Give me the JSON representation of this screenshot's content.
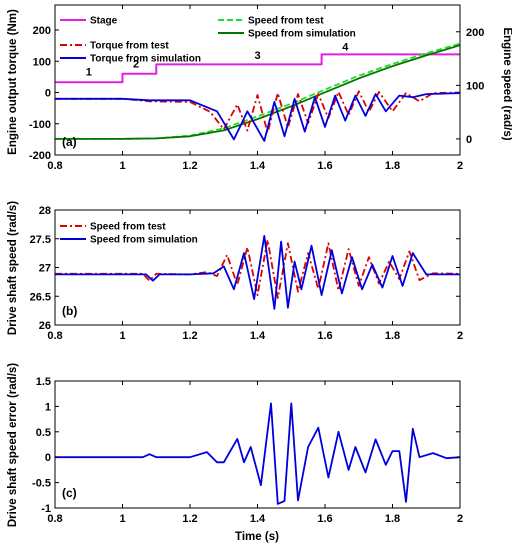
{
  "figure": {
    "x_axis_label": "Time (s)"
  },
  "chart_data": [
    {
      "type": "line",
      "panel_label": "(a)",
      "ylabel": "Engine output torque (Nm)",
      "ylabel_right": "Engine speed (rad/s)",
      "xlim": [
        0.8,
        2.0
      ],
      "ylim": [
        -200,
        280
      ],
      "ylim_right": [
        -30,
        250
      ],
      "x_ticks": [
        "0.8",
        "1",
        "1.2",
        "1.4",
        "1.6",
        "1.8",
        "2"
      ],
      "x_tick_values": [
        0.8,
        1.0,
        1.2,
        1.4,
        1.6,
        1.8,
        2.0
      ],
      "y_ticks": [
        "-200",
        "-100",
        "0",
        "100",
        "200"
      ],
      "y_tick_values": [
        -200,
        -100,
        0,
        100,
        200
      ],
      "y_ticks_right": [
        "0",
        "100",
        "200"
      ],
      "y_tick_values_right": [
        0,
        100,
        200
      ],
      "legend": [
        {
          "name": "Stage",
          "color": "#e020e0",
          "dash": "solid"
        },
        {
          "name": "Torque from test",
          "color": "#dd0000",
          "dash": "dashdot"
        },
        {
          "name": "Torque from simulation",
          "color": "#0000dd",
          "dash": "solid"
        },
        {
          "name": "Speed from test",
          "color": "#22dd22",
          "dash": "dashed"
        },
        {
          "name": "Speed from simulation",
          "color": "#007700",
          "dash": "solid"
        }
      ],
      "stage_labels": [
        {
          "text": "1",
          "x": 0.9,
          "y": 55
        },
        {
          "text": "2",
          "x": 1.04,
          "y": 80
        },
        {
          "text": "3",
          "x": 1.4,
          "y": 107
        },
        {
          "text": "4",
          "x": 1.66,
          "y": 135
        }
      ],
      "series": [
        {
          "name": "Stage",
          "axis": "left",
          "color": "#e020e0",
          "dash": "solid",
          "x": [
            0.8,
            1.0,
            1.0,
            1.1,
            1.1,
            1.59,
            1.59,
            2.0
          ],
          "y": [
            33,
            33,
            60,
            60,
            90,
            90,
            122,
            122
          ]
        },
        {
          "name": "Speed from test",
          "axis": "right",
          "color": "#22dd22",
          "dash": "dashed",
          "x": [
            0.8,
            1.0,
            1.1,
            1.2,
            1.3,
            1.4,
            1.5,
            1.6,
            1.7,
            1.8,
            1.9,
            2.0
          ],
          "y": [
            0,
            0,
            1,
            6,
            20,
            42,
            66,
            92,
            118,
            140,
            160,
            178
          ]
        },
        {
          "name": "Speed from simulation",
          "axis": "right",
          "color": "#007700",
          "dash": "solid",
          "x": [
            0.8,
            1.0,
            1.1,
            1.2,
            1.3,
            1.4,
            1.5,
            1.6,
            1.7,
            1.8,
            1.9,
            2.0
          ],
          "y": [
            0,
            0,
            1,
            5,
            16,
            37,
            61,
            87,
            113,
            136,
            156,
            175
          ]
        },
        {
          "name": "Torque from test",
          "axis": "left",
          "color": "#dd0000",
          "dash": "dashdot",
          "x": [
            0.8,
            1.0,
            1.08,
            1.2,
            1.26,
            1.3,
            1.34,
            1.37,
            1.4,
            1.43,
            1.46,
            1.49,
            1.52,
            1.55,
            1.58,
            1.61,
            1.64,
            1.67,
            1.7,
            1.73,
            1.76,
            1.8,
            1.84,
            1.88,
            1.92,
            2.0
          ],
          "y": [
            -20,
            -20,
            -28,
            -30,
            -62,
            -118,
            -38,
            -122,
            -8,
            -128,
            -2,
            -112,
            -5,
            -98,
            -5,
            -82,
            2,
            -72,
            4,
            -62,
            2,
            -60,
            -2,
            -28,
            -2,
            0
          ]
        },
        {
          "name": "Torque from simulation",
          "axis": "left",
          "color": "#0000dd",
          "dash": "solid",
          "x": [
            0.8,
            1.0,
            1.08,
            1.2,
            1.28,
            1.33,
            1.37,
            1.42,
            1.45,
            1.48,
            1.51,
            1.54,
            1.57,
            1.6,
            1.63,
            1.66,
            1.69,
            1.72,
            1.75,
            1.78,
            1.82,
            1.86,
            1.9,
            2.0
          ],
          "y": [
            -20,
            -20,
            -25,
            -25,
            -60,
            -150,
            -60,
            -155,
            -30,
            -140,
            -20,
            -125,
            -15,
            -110,
            -10,
            -90,
            -10,
            -75,
            -5,
            -60,
            -10,
            -15,
            -5,
            -2
          ]
        }
      ]
    },
    {
      "type": "line",
      "panel_label": "(b)",
      "ylabel": "Drive shaft speed (rad/s)",
      "xlim": [
        0.8,
        2.0
      ],
      "ylim": [
        26.0,
        28.0
      ],
      "x_ticks": [
        "0.8",
        "1",
        "1.2",
        "1.4",
        "1.6",
        "1.8",
        "2"
      ],
      "x_tick_values": [
        0.8,
        1.0,
        1.2,
        1.4,
        1.6,
        1.8,
        2.0
      ],
      "y_ticks": [
        "26",
        "26.5",
        "27",
        "27.5",
        "28"
      ],
      "y_tick_values": [
        26.0,
        26.5,
        27.0,
        27.5,
        28.0
      ],
      "legend": [
        {
          "name": "Speed from test",
          "color": "#dd0000",
          "dash": "dashdot"
        },
        {
          "name": "Speed from simulation",
          "color": "#0000dd",
          "dash": "solid"
        }
      ],
      "series": [
        {
          "name": "Speed from test",
          "color": "#dd0000",
          "dash": "dashdot",
          "x": [
            0.8,
            1.06,
            1.08,
            1.1,
            1.2,
            1.25,
            1.28,
            1.31,
            1.34,
            1.37,
            1.4,
            1.43,
            1.46,
            1.49,
            1.52,
            1.55,
            1.58,
            1.61,
            1.64,
            1.67,
            1.7,
            1.73,
            1.76,
            1.79,
            1.82,
            1.85,
            1.88,
            1.92,
            2.0
          ],
          "y": [
            26.89,
            26.89,
            26.77,
            26.89,
            26.88,
            26.92,
            26.85,
            27.22,
            26.7,
            27.35,
            26.52,
            27.48,
            26.47,
            27.42,
            26.58,
            27.25,
            26.63,
            27.42,
            26.6,
            27.32,
            26.68,
            27.18,
            26.72,
            27.1,
            26.8,
            27.28,
            26.78,
            26.9,
            26.89
          ]
        },
        {
          "name": "Speed from simulation",
          "color": "#0000dd",
          "dash": "solid",
          "x": [
            0.8,
            1.07,
            1.09,
            1.11,
            1.2,
            1.27,
            1.3,
            1.33,
            1.36,
            1.39,
            1.42,
            1.45,
            1.47,
            1.49,
            1.51,
            1.53,
            1.56,
            1.59,
            1.62,
            1.65,
            1.68,
            1.71,
            1.74,
            1.77,
            1.8,
            1.83,
            1.86,
            1.9,
            2.0
          ],
          "y": [
            26.88,
            26.88,
            26.77,
            26.88,
            26.88,
            26.9,
            27.02,
            26.62,
            27.25,
            26.45,
            27.55,
            26.28,
            27.45,
            26.3,
            27.1,
            26.62,
            27.38,
            26.52,
            27.3,
            26.55,
            27.18,
            26.62,
            27.05,
            26.65,
            27.2,
            26.68,
            27.25,
            26.88,
            26.88
          ]
        }
      ]
    },
    {
      "type": "line",
      "panel_label": "(c)",
      "ylabel": "Drive shaft speed error (rad/s)",
      "xlabel": "Time (s)",
      "xlim": [
        0.8,
        2.0
      ],
      "ylim": [
        -1.0,
        1.5
      ],
      "x_ticks": [
        "0.8",
        "1",
        "1.2",
        "1.4",
        "1.6",
        "1.8",
        "2"
      ],
      "x_tick_values": [
        0.8,
        1.0,
        1.2,
        1.4,
        1.6,
        1.8,
        2.0
      ],
      "y_ticks": [
        "-1",
        "-0.5",
        "0",
        "0.5",
        "1",
        "1.5"
      ],
      "y_tick_values": [
        -1.0,
        -0.5,
        0.0,
        0.5,
        1.0,
        1.5
      ],
      "series": [
        {
          "name": "",
          "color": "#0000dd",
          "dash": "solid",
          "x": [
            0.8,
            1.06,
            1.08,
            1.1,
            1.2,
            1.25,
            1.28,
            1.3,
            1.34,
            1.36,
            1.38,
            1.41,
            1.44,
            1.46,
            1.48,
            1.5,
            1.52,
            1.55,
            1.58,
            1.61,
            1.64,
            1.67,
            1.69,
            1.72,
            1.75,
            1.78,
            1.8,
            1.82,
            1.84,
            1.86,
            1.88,
            1.92,
            1.96,
            2.0
          ],
          "y": [
            0.0,
            0.0,
            0.06,
            0.0,
            0.0,
            0.1,
            -0.1,
            -0.1,
            0.36,
            -0.1,
            0.2,
            -0.55,
            1.06,
            -0.92,
            -0.86,
            1.06,
            -0.85,
            0.2,
            0.58,
            -0.4,
            0.5,
            -0.25,
            0.2,
            -0.3,
            0.35,
            -0.15,
            0.12,
            0.12,
            -0.88,
            0.56,
            0.0,
            0.08,
            -0.02,
            0.0
          ]
        }
      ]
    }
  ]
}
